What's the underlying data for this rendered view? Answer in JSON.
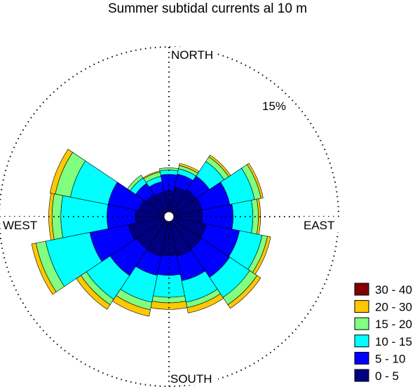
{
  "chart_data": {
    "type": "wind-rose",
    "title": "Summer subtidal currents al 10 m",
    "directions": {
      "north": "NORTH",
      "south": "SOUTH",
      "east": "EAST",
      "west": "WEST"
    },
    "ring_label": "15%",
    "radial_max_percent": 15,
    "sector_width_deg": 22.5,
    "sectors_from_north_clockwise_deg": [
      0,
      22.5,
      45,
      67.5,
      90,
      112.5,
      135,
      157.5,
      180,
      202.5,
      225,
      247.5,
      270,
      292.5,
      315,
      337.5
    ],
    "speed_bins": [
      {
        "label": "0 - 5",
        "color": "#000080"
      },
      {
        "label": "5 - 10",
        "color": "#0000ff"
      },
      {
        "label": "10 - 15",
        "color": "#00ffff"
      },
      {
        "label": "15 - 20",
        "color": "#80ff80"
      },
      {
        "label": "20 - 30",
        "color": "#ffc800"
      },
      {
        "label": "30 - 40",
        "color": "#800000"
      }
    ],
    "legend_position": "bottom-right",
    "cumulative_percent_by_sector": [
      [
        1.9,
        3.4,
        3.8,
        4.0,
        4.0,
        4.0
      ],
      [
        2.3,
        3.5,
        4.0,
        4.3,
        4.5,
        4.5
      ],
      [
        2.5,
        4.0,
        5.6,
        6.1,
        6.3,
        6.3
      ],
      [
        2.6,
        5.2,
        7.5,
        8.1,
        8.3,
        8.3
      ],
      [
        2.6,
        5.4,
        7.2,
        7.7,
        7.9,
        7.9
      ],
      [
        3.0,
        6.1,
        8.2,
        8.7,
        9.0,
        9.0
      ],
      [
        3.1,
        6.2,
        8.4,
        9.2,
        9.6,
        9.6
      ],
      [
        3.2,
        5.5,
        7.5,
        8.0,
        8.5,
        8.5
      ],
      [
        3.1,
        4.9,
        6.9,
        7.4,
        8.0,
        8.0
      ],
      [
        3.2,
        5.0,
        7.5,
        8.2,
        8.8,
        8.8
      ],
      [
        3.1,
        6.0,
        8.6,
        9.2,
        9.7,
        9.7
      ],
      [
        3.3,
        6.9,
        11.0,
        11.9,
        12.3,
        12.3
      ],
      [
        2.6,
        5.2,
        9.4,
        10.2,
        10.5,
        10.5
      ],
      [
        2.3,
        5.2,
        8.7,
        10.1,
        10.6,
        10.6
      ],
      [
        2.0,
        3.2,
        3.8,
        4.1,
        4.1,
        4.1
      ],
      [
        1.8,
        2.8,
        3.3,
        3.7,
        3.8,
        3.8
      ]
    ]
  }
}
